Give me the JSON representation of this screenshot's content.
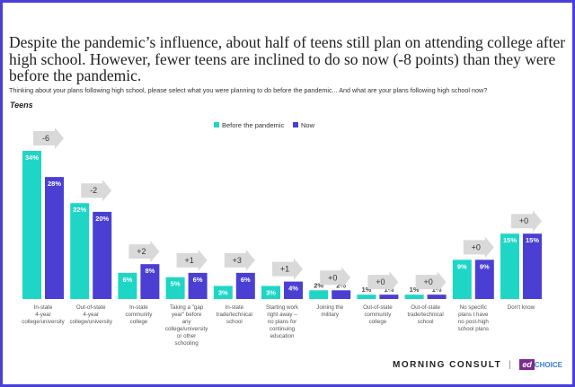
{
  "title": "Despite the pandemic’s influence, about half of teens still plan on attending college after high school. However, fewer teens are inclined to do so now (-8 points) than they were before the pandemic.",
  "question": "Thinking about your plans following high school, please select what you were planning to do before the pandemic... And what are your plans following high school now?",
  "group_label": "Teens",
  "logo": {
    "brand": "MORNING CONSULT",
    "partner_ed": "ed",
    "partner_choice": "CHOICE",
    "separator": "|"
  },
  "colors": {
    "before": "#1fd6c6",
    "now": "#4b3fd3",
    "arrow": "#d9d9d9"
  },
  "chart_data": {
    "type": "bar",
    "categories": [
      "In-state 4-year college/university",
      "Out-of-state 4-year college/university",
      "In-state community college",
      "Taking a \"gap year\" before any college/university or other schooling",
      "In-state trade/technical school",
      "Starting work right away – no plans for continuing education",
      "Joining the military",
      "Out-of-state community college",
      "Out-of-state trade/technical school",
      "No specific plans I have no post-high school plans",
      "Don't know"
    ],
    "series": [
      {
        "name": "Before the pandemic",
        "values": [
          34,
          22,
          6,
          5,
          3,
          3,
          2,
          1,
          1,
          9,
          15
        ]
      },
      {
        "name": "Now",
        "values": [
          28,
          20,
          8,
          6,
          6,
          4,
          2,
          1,
          1,
          9,
          15
        ]
      }
    ],
    "changes": [
      "-6",
      "-2",
      "+2",
      "+1",
      "+3",
      "+1",
      "+0",
      "+0",
      "+0",
      "+0",
      "+0"
    ],
    "legend_position": "top-center",
    "ylim": [
      0,
      34
    ]
  }
}
